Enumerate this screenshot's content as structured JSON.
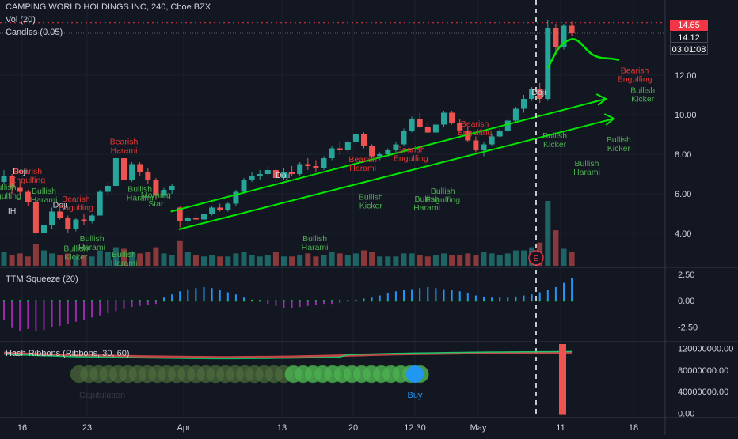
{
  "header": {
    "title": "CAMPING WORLD HOLDINGS INC, 240, Cboe BZX",
    "vol": "Vol (20)",
    "candles": "Candles (0.05)"
  },
  "price_tags": {
    "last": "14.65",
    "close": "14.12",
    "countdown": "03:01:08"
  },
  "indicators": {
    "ttm": "TTM Squeeze (20)",
    "hash": "Hash Ribbons (Ribbons, 30, 60)",
    "buy": "Buy",
    "capitulation": "Capitulation",
    "earnings": "E"
  },
  "colors": {
    "bg": "#131722",
    "up": "#26a69a",
    "down": "#ef5350",
    "pattern_green": "#4caf50",
    "pattern_red": "#e53935",
    "trend": "#00e600",
    "squeeze_pos": "#2196f3",
    "squeeze_neg": "#9c27b0"
  },
  "chart_data": [
    {
      "type": "candlestick",
      "title": "CAMPING WORLD HOLDINGS INC, 240, Cboe BZX",
      "x_ticks": [
        "16",
        "23",
        "Apr",
        "13",
        "20",
        "12:30",
        "May",
        "11",
        "18"
      ],
      "y_ticks": [
        "4.00",
        "6.00",
        "8.00",
        "10.00",
        "12.00"
      ],
      "ylim": [
        2.6,
        15.4
      ],
      "trendlines": [
        [
          [
            6.0,
            5.1
          ],
          [
            52.0,
            10.8
          ]
        ],
        [
          [
            7.0,
            4.2
          ],
          [
            53.0,
            9.8
          ]
        ]
      ],
      "patterns": [
        {
          "label": "Bullish\nEngulfing",
          "color": "green",
          "i": 0,
          "y": 6.2
        },
        {
          "label": "Doji",
          "color": "white",
          "i": 2,
          "y": 7.0
        },
        {
          "label": "IH",
          "color": "white",
          "i": 1,
          "y": 5.0
        },
        {
          "label": "Bearish\nEngulfing",
          "color": "red",
          "i": 3,
          "y": 7.0
        },
        {
          "label": "Bullish\nHarami",
          "color": "green",
          "i": 5,
          "y": 6.0
        },
        {
          "label": "Doji",
          "color": "white",
          "i": 7,
          "y": 5.3
        },
        {
          "label": "Bullish\nKicker",
          "color": "green",
          "i": 9,
          "y": 3.1
        },
        {
          "label": "Bearish\nEngulfing",
          "color": "red",
          "i": 9,
          "y": 5.6
        },
        {
          "label": "Bullish\nHarami",
          "color": "green",
          "i": 11,
          "y": 3.6
        },
        {
          "label": "Bullish\nHarami",
          "color": "green",
          "i": 15,
          "y": 2.8
        },
        {
          "label": "Bearish\nHarami",
          "color": "red",
          "i": 15,
          "y": 8.5
        },
        {
          "label": "Bullish\nHarami",
          "color": "green",
          "i": 17,
          "y": 6.1
        },
        {
          "label": "Morning\nStar",
          "color": "green",
          "i": 19,
          "y": 5.8
        },
        {
          "label": "Doji",
          "color": "white",
          "i": 22,
          "y": 6.8
        },
        {
          "label": "Bullish\nHarami",
          "color": "green",
          "i": 26,
          "y": 3.6
        },
        {
          "label": "Bearish\nHarami",
          "color": "red",
          "i": 32,
          "y": 7.6
        },
        {
          "label": "Bullish\nKicker",
          "color": "green",
          "i": 33,
          "y": 5.7
        },
        {
          "label": "Bearish\nEngulfing",
          "color": "red",
          "i": 38,
          "y": 8.1
        },
        {
          "label": "Bullish\nHarami",
          "color": "green",
          "i": 40,
          "y": 5.6
        },
        {
          "label": "Bullish\nEngulfing",
          "color": "green",
          "i": 42,
          "y": 6.0
        },
        {
          "label": "Bearish\nEngulfing",
          "color": "red",
          "i": 46,
          "y": 9.4
        },
        {
          "label": "Doji",
          "color": "white",
          "i": 54,
          "y": 11.0
        },
        {
          "label": "Bullish\nKicker",
          "color": "green",
          "i": 56,
          "y": 8.8
        },
        {
          "label": "Bullish\nHarami",
          "color": "green",
          "i": 60,
          "y": 7.4
        },
        {
          "label": "Bullish\nKicker",
          "color": "green",
          "i": 64,
          "y": 8.6
        },
        {
          "label": "Bearish\nEngulfing",
          "color": "red",
          "i": 66,
          "y": 12.1
        },
        {
          "label": "Bullish\nKicker",
          "color": "green",
          "i": 67,
          "y": 11.1
        }
      ],
      "series": [
        {
          "name": "OHLC",
          "values": [
            [
              6.6,
              7.2,
              6.5,
              6.9
            ],
            [
              6.9,
              7.0,
              6.0,
              6.3
            ],
            [
              6.3,
              6.6,
              5.9,
              6.1
            ],
            [
              6.1,
              6.2,
              5.4,
              5.6
            ],
            [
              5.6,
              5.8,
              3.7,
              4.0
            ],
            [
              4.0,
              4.6,
              3.8,
              4.4
            ],
            [
              4.4,
              5.3,
              4.2,
              5.1
            ],
            [
              5.1,
              5.2,
              4.7,
              4.8
            ],
            [
              4.8,
              4.9,
              4.0,
              4.2
            ],
            [
              4.2,
              4.8,
              4.1,
              4.7
            ],
            [
              4.7,
              5.0,
              4.4,
              4.6
            ],
            [
              4.6,
              5.0,
              4.5,
              4.9
            ],
            [
              4.9,
              6.2,
              4.9,
              6.1
            ],
            [
              6.1,
              6.6,
              5.9,
              6.4
            ],
            [
              6.4,
              7.9,
              6.3,
              7.8
            ],
            [
              7.8,
              8.1,
              6.5,
              6.7
            ],
            [
              6.7,
              7.6,
              6.6,
              7.5
            ],
            [
              7.5,
              7.6,
              6.9,
              7.1
            ],
            [
              7.1,
              7.3,
              6.5,
              6.7
            ],
            [
              6.7,
              6.8,
              5.7,
              5.9
            ],
            [
              5.9,
              6.3,
              5.8,
              6.2
            ],
            [
              6.2,
              6.5,
              6.0,
              6.4
            ],
            [
              5.3,
              5.4,
              4.3,
              4.6
            ],
            [
              4.6,
              4.9,
              4.4,
              4.8
            ],
            [
              4.8,
              5.0,
              4.6,
              4.7
            ],
            [
              4.7,
              5.1,
              4.6,
              5.0
            ],
            [
              5.0,
              5.4,
              4.9,
              5.3
            ],
            [
              5.3,
              5.5,
              5.1,
              5.2
            ],
            [
              5.2,
              5.6,
              5.1,
              5.5
            ],
            [
              5.5,
              6.2,
              5.4,
              6.1
            ],
            [
              6.1,
              6.8,
              6.0,
              6.7
            ],
            [
              6.7,
              7.1,
              6.6,
              6.9
            ],
            [
              6.9,
              7.2,
              6.7,
              7.0
            ],
            [
              7.0,
              7.4,
              6.9,
              7.2
            ],
            [
              7.2,
              7.3,
              6.6,
              6.8
            ],
            [
              6.8,
              7.3,
              6.7,
              7.1
            ],
            [
              7.1,
              7.4,
              6.9,
              7.0
            ],
            [
              7.0,
              7.6,
              6.9,
              7.5
            ],
            [
              7.5,
              7.8,
              7.2,
              7.4
            ],
            [
              7.4,
              7.7,
              7.1,
              7.3
            ],
            [
              7.3,
              7.9,
              7.2,
              7.8
            ],
            [
              7.8,
              8.4,
              7.7,
              8.3
            ],
            [
              8.3,
              8.6,
              8.0,
              8.2
            ],
            [
              8.2,
              8.7,
              8.1,
              8.6
            ],
            [
              8.6,
              9.1,
              8.5,
              9.0
            ],
            [
              9.0,
              9.1,
              8.3,
              8.4
            ],
            [
              8.4,
              8.5,
              7.8,
              7.9
            ],
            [
              7.9,
              8.1,
              7.7,
              8.0
            ],
            [
              8.0,
              8.3,
              7.9,
              8.2
            ],
            [
              8.2,
              8.6,
              8.1,
              8.5
            ],
            [
              8.5,
              9.3,
              8.4,
              9.2
            ],
            [
              9.2,
              9.9,
              9.1,
              9.8
            ],
            [
              9.8,
              10.1,
              9.3,
              9.4
            ],
            [
              9.4,
              9.6,
              9.0,
              9.1
            ],
            [
              9.1,
              9.6,
              9.0,
              9.5
            ],
            [
              9.5,
              10.2,
              9.4,
              10.1
            ],
            [
              10.1,
              10.2,
              9.5,
              9.6
            ],
            [
              9.6,
              9.8,
              9.1,
              9.2
            ],
            [
              9.2,
              9.4,
              8.6,
              8.7
            ],
            [
              8.7,
              8.9,
              8.1,
              8.2
            ],
            [
              8.2,
              8.6,
              7.9,
              8.5
            ],
            [
              8.5,
              9.0,
              8.4,
              8.9
            ],
            [
              8.9,
              9.3,
              8.8,
              9.2
            ],
            [
              9.2,
              9.8,
              9.1,
              9.7
            ],
            [
              9.7,
              10.4,
              9.6,
              10.3
            ],
            [
              10.3,
              11.0,
              10.1,
              10.8
            ],
            [
              10.8,
              11.4,
              10.7,
              11.3
            ],
            [
              11.3,
              11.6,
              10.6,
              10.8
            ],
            [
              10.8,
              14.8,
              10.7,
              14.4
            ],
            [
              14.4,
              14.6,
              13.0,
              13.4
            ],
            [
              13.4,
              14.6,
              13.3,
              14.5
            ],
            [
              14.5,
              14.7,
              14.0,
              14.12
            ]
          ]
        },
        {
          "name": "Vol (20)",
          "values": [
            0.9,
            0.7,
            0.8,
            0.6,
            1.4,
            1.0,
            0.8,
            0.7,
            0.8,
            0.6,
            0.7,
            0.6,
            1.0,
            0.9,
            1.2,
            1.1,
            0.9,
            0.8,
            0.9,
            1.2,
            0.8,
            0.7,
            1.6,
            0.9,
            0.7,
            0.6,
            0.7,
            0.6,
            0.6,
            0.8,
            0.9,
            0.7,
            0.6,
            0.7,
            0.9,
            0.6,
            0.6,
            0.7,
            0.8,
            0.6,
            0.7,
            0.9,
            0.8,
            0.7,
            0.8,
            1.0,
            0.9,
            0.6,
            0.6,
            0.6,
            0.8,
            0.8,
            0.7,
            0.6,
            0.7,
            0.8,
            0.7,
            0.7,
            0.8,
            0.7,
            0.9,
            0.8,
            0.7,
            0.8,
            1.0,
            1.0,
            1.2,
            1.5,
            4.2,
            2.3,
            1.1,
            0.9
          ]
        }
      ]
    },
    {
      "type": "bar",
      "title": "TTM Squeeze (20)",
      "y_ticks": [
        "2.50",
        "0.00",
        "-2.50"
      ],
      "ylim": [
        -3.6,
        2.8
      ],
      "values": [
        -1.8,
        -2.6,
        -2.9,
        -2.7,
        -2.9,
        -2.8,
        -2.5,
        -2.4,
        -2.2,
        -2.0,
        -1.8,
        -1.6,
        -1.4,
        -1.2,
        -1.0,
        -0.8,
        -0.6,
        -0.5,
        -0.4,
        -0.3,
        0.3,
        0.6,
        0.9,
        1.1,
        1.2,
        1.3,
        1.2,
        1.0,
        0.8,
        0.6,
        0.3,
        0.1,
        -0.1,
        -0.3,
        -0.5,
        -0.7,
        -0.7,
        -0.6,
        -0.5,
        -0.4,
        -0.3,
        -0.3,
        -0.2,
        -0.1,
        0.1,
        0.2,
        0.3,
        0.5,
        0.7,
        0.9,
        1.0,
        1.1,
        1.2,
        1.3,
        1.2,
        1.1,
        1.0,
        0.9,
        0.7,
        0.5,
        0.4,
        0.3,
        0.3,
        0.3,
        0.4,
        0.5,
        0.6,
        0.8,
        1.0,
        1.3,
        1.7,
        2.2
      ]
    },
    {
      "type": "line",
      "title": "Hash Ribbons (Ribbons, 30, 60)",
      "y_ticks": [
        "120000000.00",
        "80000000.00",
        "40000000.00",
        "0.00"
      ],
      "ylim": [
        -5000000,
        128000000
      ],
      "signals": [
        {
          "label": "Buy",
          "i": 43
        },
        {
          "label": "Capitulation",
          "i": 8
        }
      ],
      "series": [
        {
          "name": "Ribbon",
          "values": [
            112000000,
            111000000,
            110500000,
            110000000,
            109500000,
            109000000,
            108500000,
            108000000,
            107500000,
            107000000,
            107000000,
            106800000,
            106500000,
            106200000,
            106000000,
            105800000,
            105500000,
            105200000,
            105000000,
            104800000,
            104600000,
            104400000,
            104200000,
            104000000,
            103900000,
            103800000,
            103700000,
            103600000,
            103600000,
            103700000,
            103800000,
            103900000,
            104000000,
            104100000,
            104300000,
            104500000,
            104700000,
            105000000,
            105300000,
            105600000,
            105900000,
            106200000,
            106600000,
            107000000,
            107400000,
            107800000,
            108200000,
            108600000,
            109000000,
            109300000,
            109600000,
            109900000,
            110100000,
            110300000,
            110500000,
            110700000,
            110900000,
            111100000,
            111300000,
            111500000,
            111700000,
            111800000,
            111900000,
            112000000,
            112100000,
            112200000,
            112300000,
            112400000,
            112500000,
            112600000,
            112700000,
            112800000
          ]
        }
      ],
      "spike": {
        "i": 69,
        "value": 128000000
      }
    }
  ]
}
